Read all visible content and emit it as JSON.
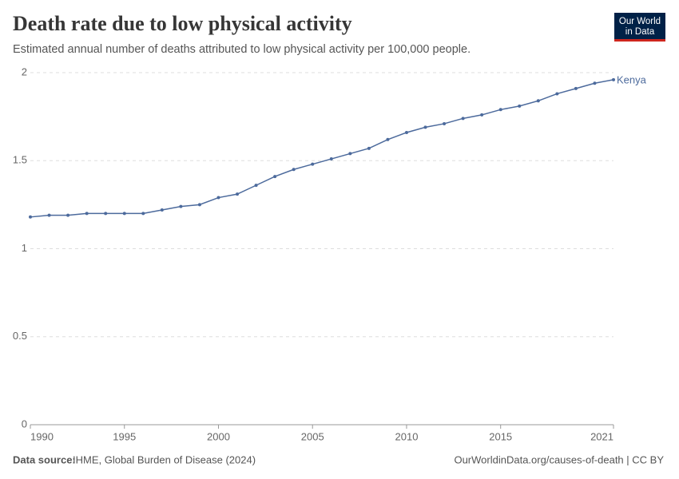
{
  "chart_data": {
    "type": "line",
    "title": "Death rate due to low physical activity",
    "subtitle": "Estimated annual number of deaths attributed to low physical activity per 100,000 people.",
    "logo": [
      "Our World",
      "in Data"
    ],
    "source_label": "Data source:",
    "source": "IHME, Global Burden of Disease (2024)",
    "credit": "OurWorldinData.org/causes-of-death | CC BY",
    "x": [
      1990,
      1991,
      1992,
      1993,
      1994,
      1995,
      1996,
      1997,
      1998,
      1999,
      2000,
      2001,
      2002,
      2003,
      2004,
      2005,
      2006,
      2007,
      2008,
      2009,
      2010,
      2011,
      2012,
      2013,
      2014,
      2015,
      2016,
      2017,
      2018,
      2019,
      2020,
      2021
    ],
    "series": [
      {
        "name": "Kenya",
        "color": "#4c6a9c",
        "values": [
          1.18,
          1.19,
          1.19,
          1.2,
          1.2,
          1.2,
          1.2,
          1.22,
          1.24,
          1.25,
          1.29,
          1.31,
          1.36,
          1.41,
          1.45,
          1.48,
          1.51,
          1.54,
          1.57,
          1.62,
          1.66,
          1.69,
          1.71,
          1.74,
          1.76,
          1.79,
          1.81,
          1.84,
          1.88,
          1.91,
          1.94,
          1.96
        ]
      }
    ],
    "xlim": [
      1990,
      2021
    ],
    "xticks": [
      1990,
      1995,
      2000,
      2005,
      2010,
      2015,
      2021
    ],
    "ylim": [
      0,
      2
    ],
    "yticks": [
      0,
      0.5,
      1,
      1.5,
      2
    ],
    "grid": true
  }
}
